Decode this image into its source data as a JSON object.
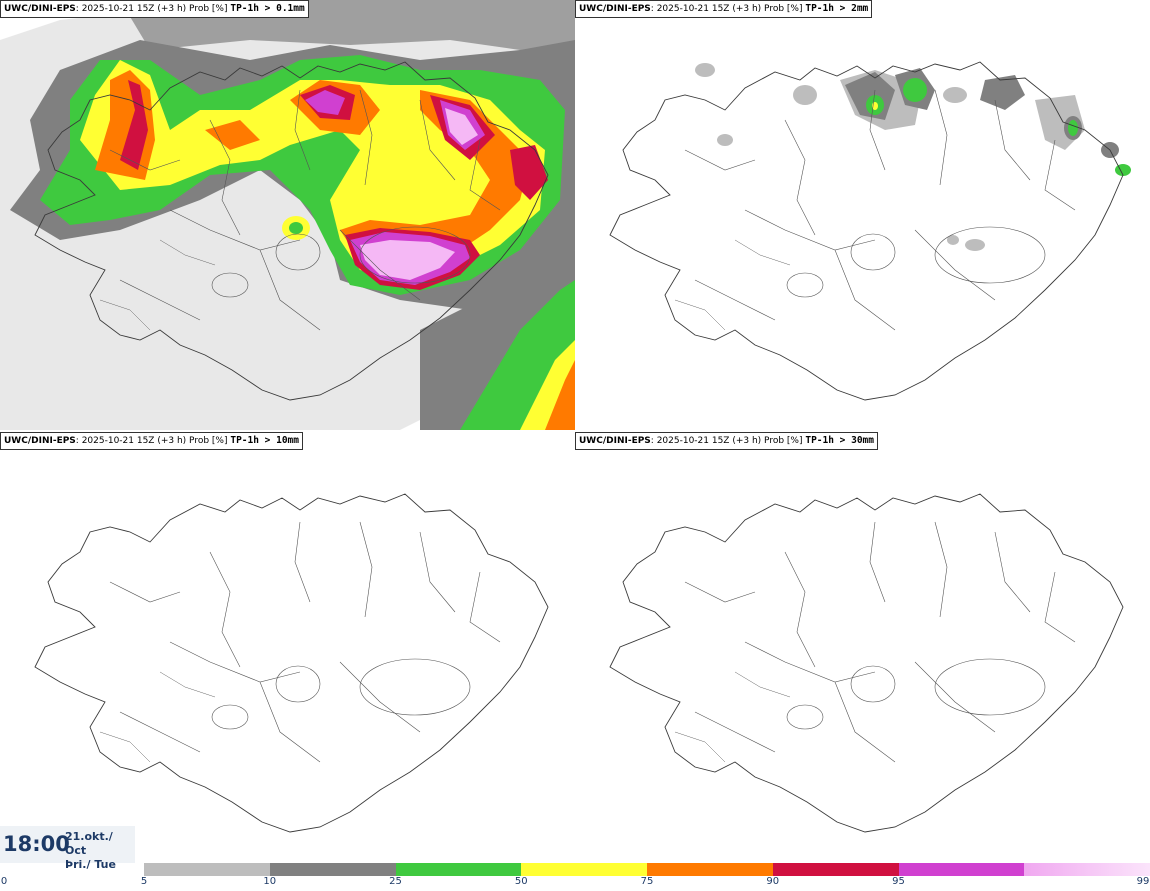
{
  "panels": [
    {
      "model": "UWC/DINI-EPS",
      "run_info": ": 2025-10-21 15Z (+3 h) Prob [%]",
      "threshold": "TP-1h > 0.1mm"
    },
    {
      "model": "UWC/DINI-EPS",
      "run_info": ": 2025-10-21 15Z (+3 h) Prob [%]",
      "threshold": "TP-1h > 2mm"
    },
    {
      "model": "UWC/DINI-EPS",
      "run_info": ": 2025-10-21 15Z (+3 h) Prob [%]",
      "threshold": "TP-1h > 10mm"
    },
    {
      "model": "UWC/DINI-EPS",
      "run_info": ": 2025-10-21 15Z (+3 h) Prob [%]",
      "threshold": "TP-1h > 30mm"
    }
  ],
  "time": {
    "clock": "18:00",
    "date_line": "21.okt./ Oct",
    "day_line": "Þri./ Tue"
  },
  "legend": {
    "ticks": [
      "0",
      "5",
      "10",
      "25",
      "50",
      "75",
      "90",
      "95",
      "99"
    ],
    "colors": [
      "#bdbdbd",
      "#808080",
      "#3fc93f",
      "#ffff33",
      "#ff7a00",
      "#d01040",
      "#d040d0",
      "#f5b8f5"
    ]
  }
}
